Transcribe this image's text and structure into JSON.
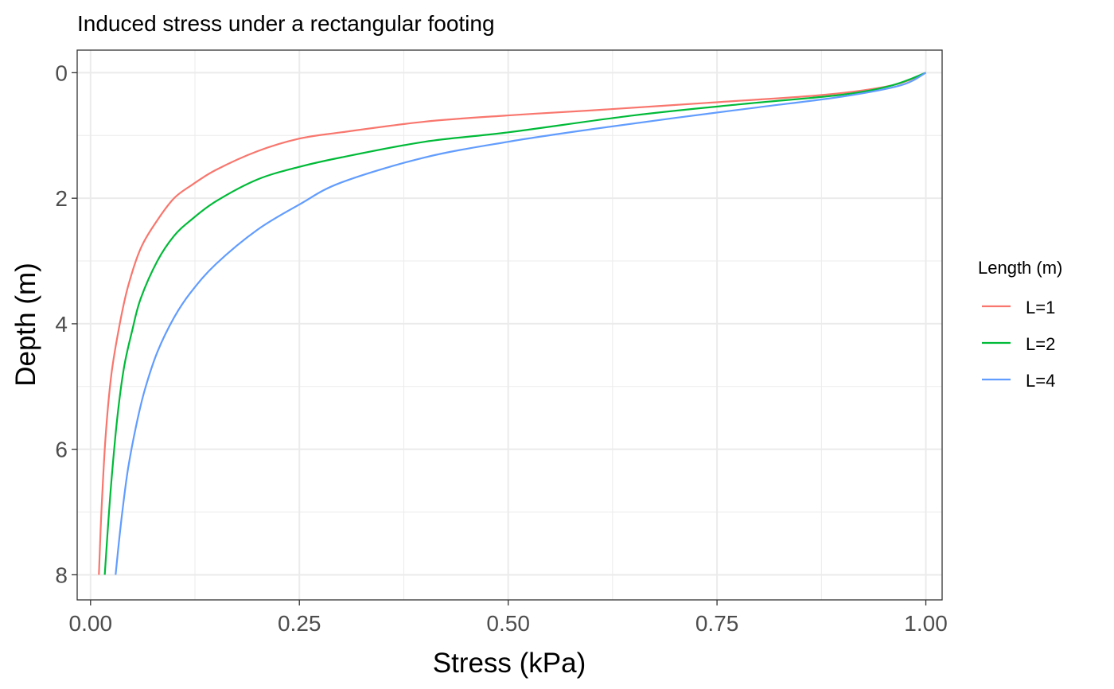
{
  "chart_data": {
    "type": "line",
    "title": "Induced stress under a rectangular footing",
    "xlabel": "Stress (kPa)",
    "ylabel": "Depth (m)",
    "xlim": [
      -0.016,
      1.0195
    ],
    "ylim": [
      8.4,
      -0.36
    ],
    "y_reversed": true,
    "x_ticks": [
      0.0,
      0.25,
      0.5,
      0.75,
      1.0
    ],
    "x_tick_labels": [
      "0.00",
      "0.25",
      "0.50",
      "0.75",
      "1.00"
    ],
    "y_ticks": [
      0,
      2,
      4,
      6,
      8
    ],
    "y_tick_labels": [
      "0",
      "2",
      "4",
      "6",
      "8"
    ],
    "grid": true,
    "legend": {
      "title": "Length (m)",
      "position": "right"
    },
    "series": [
      {
        "name": "L=1",
        "color": "#f8766d",
        "points": [
          {
            "x": 1.0,
            "y": 0.0
          },
          {
            "x": 0.96,
            "y": 0.2
          },
          {
            "x": 0.88,
            "y": 0.35
          },
          {
            "x": 0.75,
            "y": 0.47
          },
          {
            "x": 0.6,
            "y": 0.6
          },
          {
            "x": 0.5,
            "y": 0.68
          },
          {
            "x": 0.4,
            "y": 0.78
          },
          {
            "x": 0.3,
            "y": 0.95
          },
          {
            "x": 0.25,
            "y": 1.05
          },
          {
            "x": 0.2,
            "y": 1.25
          },
          {
            "x": 0.15,
            "y": 1.55
          },
          {
            "x": 0.12,
            "y": 1.8
          },
          {
            "x": 0.1,
            "y": 2.0
          },
          {
            "x": 0.08,
            "y": 2.35
          },
          {
            "x": 0.06,
            "y": 2.8
          },
          {
            "x": 0.045,
            "y": 3.4
          },
          {
            "x": 0.035,
            "y": 4.0
          },
          {
            "x": 0.025,
            "y": 4.8
          },
          {
            "x": 0.018,
            "y": 5.8
          },
          {
            "x": 0.013,
            "y": 7.0
          },
          {
            "x": 0.01,
            "y": 8.0
          }
        ]
      },
      {
        "name": "L=2",
        "color": "#00ba38",
        "points": [
          {
            "x": 1.0,
            "y": 0.0
          },
          {
            "x": 0.96,
            "y": 0.2
          },
          {
            "x": 0.9,
            "y": 0.35
          },
          {
            "x": 0.78,
            "y": 0.5
          },
          {
            "x": 0.65,
            "y": 0.68
          },
          {
            "x": 0.5,
            "y": 0.95
          },
          {
            "x": 0.4,
            "y": 1.1
          },
          {
            "x": 0.3,
            "y": 1.35
          },
          {
            "x": 0.25,
            "y": 1.5
          },
          {
            "x": 0.2,
            "y": 1.7
          },
          {
            "x": 0.15,
            "y": 2.05
          },
          {
            "x": 0.12,
            "y": 2.35
          },
          {
            "x": 0.1,
            "y": 2.6
          },
          {
            "x": 0.08,
            "y": 3.0
          },
          {
            "x": 0.06,
            "y": 3.6
          },
          {
            "x": 0.05,
            "y": 4.1
          },
          {
            "x": 0.04,
            "y": 4.7
          },
          {
            "x": 0.032,
            "y": 5.5
          },
          {
            "x": 0.025,
            "y": 6.5
          },
          {
            "x": 0.02,
            "y": 7.4
          },
          {
            "x": 0.017,
            "y": 8.0
          }
        ]
      },
      {
        "name": "L=4",
        "color": "#619cff",
        "points": [
          {
            "x": 1.0,
            "y": 0.0
          },
          {
            "x": 0.97,
            "y": 0.2
          },
          {
            "x": 0.9,
            "y": 0.38
          },
          {
            "x": 0.8,
            "y": 0.55
          },
          {
            "x": 0.7,
            "y": 0.72
          },
          {
            "x": 0.6,
            "y": 0.9
          },
          {
            "x": 0.5,
            "y": 1.1
          },
          {
            "x": 0.4,
            "y": 1.35
          },
          {
            "x": 0.3,
            "y": 1.75
          },
          {
            "x": 0.25,
            "y": 2.1
          },
          {
            "x": 0.2,
            "y": 2.5
          },
          {
            "x": 0.15,
            "y": 3.05
          },
          {
            "x": 0.12,
            "y": 3.5
          },
          {
            "x": 0.1,
            "y": 3.9
          },
          {
            "x": 0.08,
            "y": 4.45
          },
          {
            "x": 0.065,
            "y": 5.05
          },
          {
            "x": 0.055,
            "y": 5.6
          },
          {
            "x": 0.045,
            "y": 6.3
          },
          {
            "x": 0.038,
            "y": 7.0
          },
          {
            "x": 0.033,
            "y": 7.6
          },
          {
            "x": 0.03,
            "y": 8.0
          }
        ]
      }
    ]
  }
}
